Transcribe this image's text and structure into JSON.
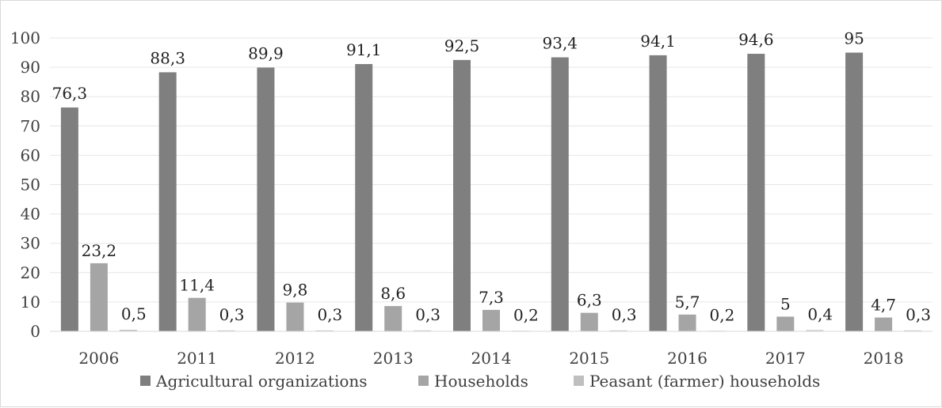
{
  "chart_data": {
    "type": "bar",
    "title": "",
    "xlabel": "",
    "ylabel": "",
    "categories": [
      "2006",
      "2011",
      "2012",
      "2013",
      "2014",
      "2015",
      "2016",
      "2017",
      "2018"
    ],
    "series": [
      {
        "name": "Agricultural organizations",
        "color": "#7f7f7f",
        "values": [
          76.3,
          88.3,
          89.9,
          91.1,
          92.5,
          93.4,
          94.1,
          94.6,
          95
        ],
        "labels": [
          "76,3",
          "88,3",
          "89,9",
          "91,1",
          "92,5",
          "93,4",
          "94,1",
          "94,6",
          "95"
        ]
      },
      {
        "name": "Households",
        "color": "#a5a5a5",
        "values": [
          23.2,
          11.4,
          9.8,
          8.6,
          7.3,
          6.3,
          5.7,
          5,
          4.7
        ],
        "labels": [
          "23,2",
          "11,4",
          "9,8",
          "8,6",
          "7,3",
          "6,3",
          "5,7",
          "5",
          "4,7"
        ]
      },
      {
        "name": "Peasant (farmer) households",
        "color": "#bfbfbf",
        "values": [
          0.5,
          0.3,
          0.3,
          0.3,
          0.2,
          0.3,
          0.2,
          0.4,
          0.3
        ],
        "labels": [
          "0,5",
          "0,3",
          "0,3",
          "0,3",
          "0,2",
          "0,3",
          "0,2",
          "0,4",
          "0,3"
        ]
      }
    ],
    "ylim": [
      0,
      100
    ],
    "yticks": [
      0,
      10,
      20,
      30,
      40,
      50,
      60,
      70,
      80,
      90,
      100
    ],
    "grid": true,
    "legend_position": "bottom"
  }
}
